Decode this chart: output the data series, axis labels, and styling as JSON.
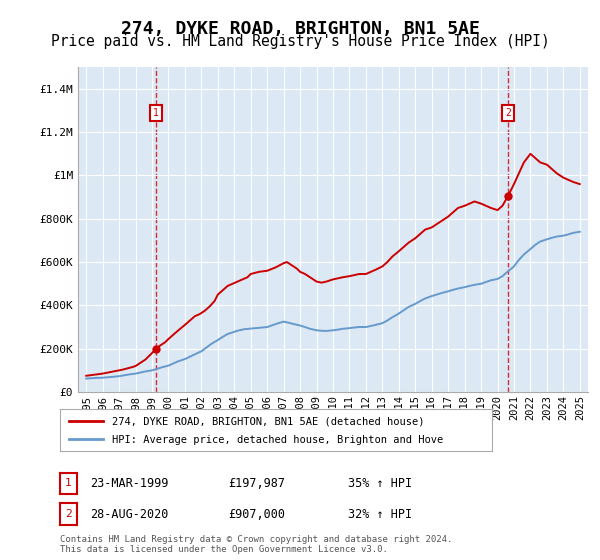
{
  "title": "274, DYKE ROAD, BRIGHTON, BN1 5AE",
  "subtitle": "Price paid vs. HM Land Registry's House Price Index (HPI)",
  "title_fontsize": 13,
  "subtitle_fontsize": 10.5,
  "background_color": "#dce9f5",
  "plot_bg_color": "#dce9f5",
  "outer_bg_color": "#ffffff",
  "red_line_color": "#cc0000",
  "blue_line_color": "#6699cc",
  "grid_color": "#ffffff",
  "annotation_box_color": "#cc0000",
  "ylim": [
    0,
    1500000
  ],
  "xlim_min": 1994.5,
  "xlim_max": 2025.5,
  "yticks": [
    0,
    200000,
    400000,
    600000,
    800000,
    1000000,
    1200000,
    1400000
  ],
  "ytick_labels": [
    "£0",
    "£200K",
    "£400K",
    "£600K",
    "£800K",
    "£1M",
    "£1.2M",
    "£1.4M"
  ],
  "xticks": [
    1995,
    1996,
    1997,
    1998,
    1999,
    2000,
    2001,
    2002,
    2003,
    2004,
    2005,
    2006,
    2007,
    2008,
    2009,
    2010,
    2011,
    2012,
    2013,
    2014,
    2015,
    2016,
    2017,
    2018,
    2019,
    2020,
    2021,
    2022,
    2023,
    2024,
    2025
  ],
  "legend_label_red": "274, DYKE ROAD, BRIGHTON, BN1 5AE (detached house)",
  "legend_label_blue": "HPI: Average price, detached house, Brighton and Hove",
  "sale1_x": 1999.22,
  "sale1_y": 197987,
  "sale1_label": "1",
  "sale1_date": "23-MAR-1999",
  "sale1_price": "£197,987",
  "sale1_hpi": "35% ↑ HPI",
  "sale2_x": 2020.65,
  "sale2_y": 907000,
  "sale2_label": "2",
  "sale2_date": "28-AUG-2020",
  "sale2_price": "£907,000",
  "sale2_hpi": "32% ↑ HPI",
  "footnote": "Contains HM Land Registry data © Crown copyright and database right 2024.\nThis data is licensed under the Open Government Licence v3.0.",
  "red_x": [
    1995.0,
    1995.2,
    1995.4,
    1995.6,
    1995.8,
    1996.0,
    1996.2,
    1996.4,
    1996.6,
    1996.8,
    1997.0,
    1997.2,
    1997.4,
    1997.6,
    1997.8,
    1998.0,
    1998.2,
    1998.4,
    1998.6,
    1998.8,
    1999.0,
    1999.22,
    1999.5,
    1999.8,
    2000.0,
    2000.3,
    2000.6,
    2001.0,
    2001.3,
    2001.6,
    2001.9,
    2002.2,
    2002.5,
    2002.8,
    2003.0,
    2003.3,
    2003.6,
    2003.9,
    2004.2,
    2004.5,
    2004.8,
    2005.0,
    2005.5,
    2006.0,
    2006.5,
    2007.0,
    2007.2,
    2007.4,
    2007.6,
    2007.8,
    2008.0,
    2008.3,
    2008.6,
    2009.0,
    2009.3,
    2009.6,
    2010.0,
    2010.3,
    2010.6,
    2011.0,
    2011.3,
    2011.6,
    2012.0,
    2012.3,
    2012.6,
    2013.0,
    2013.3,
    2013.6,
    2014.0,
    2014.3,
    2014.6,
    2015.0,
    2015.3,
    2015.6,
    2016.0,
    2016.3,
    2016.6,
    2017.0,
    2017.3,
    2017.6,
    2018.0,
    2018.3,
    2018.6,
    2019.0,
    2019.3,
    2019.6,
    2020.0,
    2020.3,
    2020.65,
    2021.0,
    2021.3,
    2021.6,
    2022.0,
    2022.3,
    2022.6,
    2023.0,
    2023.3,
    2023.6,
    2024.0,
    2024.3,
    2024.6,
    2025.0
  ],
  "red_y": [
    75000,
    77000,
    79000,
    81000,
    83000,
    85000,
    88000,
    91000,
    94000,
    97000,
    100000,
    103000,
    107000,
    111000,
    115000,
    120000,
    130000,
    140000,
    150000,
    165000,
    180000,
    197987,
    215000,
    230000,
    245000,
    265000,
    285000,
    310000,
    330000,
    350000,
    360000,
    375000,
    395000,
    420000,
    450000,
    470000,
    490000,
    500000,
    510000,
    520000,
    530000,
    545000,
    555000,
    560000,
    575000,
    595000,
    600000,
    590000,
    580000,
    570000,
    555000,
    545000,
    530000,
    510000,
    505000,
    510000,
    520000,
    525000,
    530000,
    535000,
    540000,
    545000,
    545000,
    555000,
    565000,
    580000,
    600000,
    625000,
    650000,
    670000,
    690000,
    710000,
    730000,
    750000,
    760000,
    775000,
    790000,
    810000,
    830000,
    850000,
    860000,
    870000,
    880000,
    870000,
    860000,
    850000,
    840000,
    860000,
    907000,
    960000,
    1010000,
    1060000,
    1100000,
    1080000,
    1060000,
    1050000,
    1030000,
    1010000,
    990000,
    980000,
    970000,
    960000
  ],
  "blue_x": [
    1995.0,
    1995.3,
    1995.6,
    1996.0,
    1996.3,
    1996.6,
    1997.0,
    1997.3,
    1997.6,
    1998.0,
    1998.3,
    1998.6,
    1999.0,
    1999.3,
    1999.6,
    2000.0,
    2000.3,
    2000.6,
    2001.0,
    2001.3,
    2001.6,
    2002.0,
    2002.3,
    2002.6,
    2003.0,
    2003.3,
    2003.6,
    2004.0,
    2004.3,
    2004.6,
    2005.0,
    2005.3,
    2005.6,
    2006.0,
    2006.3,
    2006.6,
    2007.0,
    2007.3,
    2007.6,
    2008.0,
    2008.3,
    2008.6,
    2009.0,
    2009.3,
    2009.6,
    2010.0,
    2010.3,
    2010.6,
    2011.0,
    2011.3,
    2011.6,
    2012.0,
    2012.3,
    2012.6,
    2013.0,
    2013.3,
    2013.6,
    2014.0,
    2014.3,
    2014.6,
    2015.0,
    2015.3,
    2015.6,
    2016.0,
    2016.3,
    2016.6,
    2017.0,
    2017.3,
    2017.6,
    2018.0,
    2018.3,
    2018.6,
    2019.0,
    2019.3,
    2019.6,
    2020.0,
    2020.3,
    2020.6,
    2021.0,
    2021.3,
    2021.6,
    2022.0,
    2022.3,
    2022.6,
    2023.0,
    2023.3,
    2023.6,
    2024.0,
    2024.3,
    2024.6,
    2025.0
  ],
  "blue_y": [
    62000,
    63500,
    65000,
    66000,
    68000,
    70000,
    73000,
    77000,
    81000,
    85000,
    90000,
    95000,
    100000,
    107000,
    114000,
    122000,
    132000,
    142000,
    152000,
    163000,
    174000,
    188000,
    205000,
    222000,
    240000,
    255000,
    268000,
    278000,
    285000,
    290000,
    293000,
    295000,
    297000,
    300000,
    308000,
    316000,
    325000,
    320000,
    314000,
    307000,
    300000,
    292000,
    285000,
    283000,
    282000,
    285000,
    288000,
    292000,
    295000,
    298000,
    300000,
    300000,
    305000,
    310000,
    318000,
    330000,
    345000,
    362000,
    378000,
    393000,
    407000,
    420000,
    432000,
    443000,
    450000,
    457000,
    465000,
    472000,
    478000,
    484000,
    490000,
    495000,
    500000,
    508000,
    516000,
    522000,
    535000,
    555000,
    580000,
    610000,
    635000,
    660000,
    680000,
    695000,
    705000,
    712000,
    718000,
    722000,
    728000,
    735000,
    740000
  ]
}
